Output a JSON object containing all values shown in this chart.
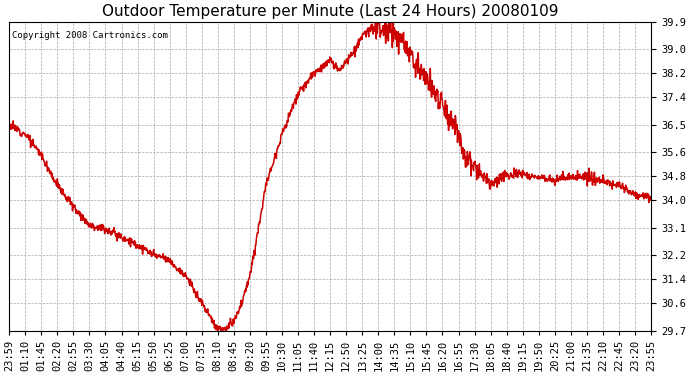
{
  "title": "Outdoor Temperature per Minute (Last 24 Hours) 20080109",
  "copyright_text": "Copyright 2008 Cartronics.com",
  "line_color": "#cc0000",
  "background_color": "#ffffff",
  "grid_color": "#aaaaaa",
  "ylim": [
    29.7,
    39.9
  ],
  "yticks": [
    29.7,
    30.6,
    31.4,
    32.2,
    33.1,
    34.0,
    34.8,
    35.6,
    36.5,
    37.4,
    38.2,
    39.0,
    39.9
  ],
  "xtick_labels": [
    "23:59",
    "01:10",
    "01:45",
    "02:20",
    "02:55",
    "03:30",
    "04:05",
    "04:40",
    "05:15",
    "05:50",
    "06:25",
    "07:00",
    "07:35",
    "08:10",
    "08:45",
    "09:20",
    "09:55",
    "10:30",
    "11:05",
    "11:40",
    "12:15",
    "12:50",
    "13:25",
    "14:00",
    "14:35",
    "15:10",
    "15:45",
    "16:20",
    "16:55",
    "17:30",
    "18:05",
    "18:40",
    "19:15",
    "19:50",
    "20:25",
    "21:00",
    "21:35",
    "22:10",
    "22:45",
    "23:20",
    "23:55"
  ],
  "key_points_x": [
    0,
    1,
    2,
    3,
    4,
    5,
    6,
    7,
    8,
    9,
    10,
    11,
    12,
    12.3,
    12.6,
    12.9,
    13,
    13.3,
    13.6,
    14,
    14.5,
    15,
    15.5,
    16,
    17,
    18,
    19,
    20,
    20.5,
    21,
    21.5,
    22,
    22.5,
    23,
    23.3,
    23.6,
    24,
    24.5,
    25,
    26,
    27,
    27.5,
    28,
    28.3,
    28.7,
    29,
    29.5,
    30,
    31,
    32,
    33,
    34,
    35,
    36,
    37,
    38,
    39,
    40
  ],
  "key_points_y": [
    36.5,
    36.2,
    35.5,
    34.5,
    33.8,
    33.2,
    33.05,
    32.8,
    32.5,
    32.2,
    32.0,
    31.5,
    30.62,
    30.35,
    30.1,
    29.82,
    29.78,
    29.75,
    29.78,
    30.0,
    30.6,
    31.5,
    33.0,
    34.5,
    36.2,
    37.5,
    38.2,
    38.6,
    38.3,
    38.6,
    38.9,
    39.4,
    39.65,
    39.7,
    39.55,
    39.65,
    39.5,
    39.2,
    38.8,
    38.0,
    37.2,
    36.7,
    36.2,
    35.6,
    35.4,
    35.0,
    34.8,
    34.5,
    34.85,
    34.9,
    34.75,
    34.7,
    34.8,
    34.75,
    34.65,
    34.5,
    34.2,
    34.1
  ],
  "title_fontsize": 11,
  "tick_fontsize": 7.5,
  "line_width": 1.1
}
